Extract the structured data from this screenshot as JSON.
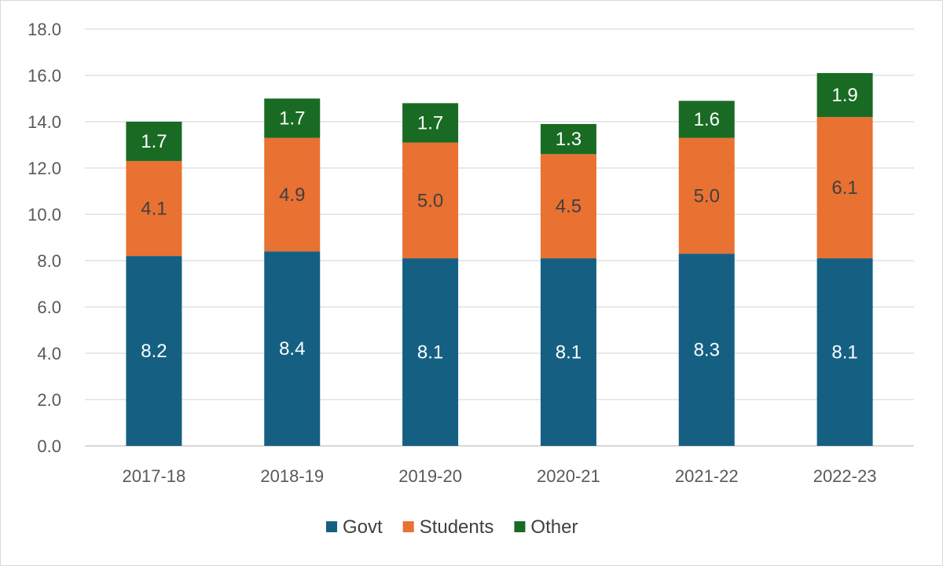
{
  "chart_data": {
    "type": "bar",
    "stacked": true,
    "title": "",
    "xlabel": "",
    "ylabel": "",
    "ylim": [
      0,
      18
    ],
    "y_ticks": [
      "0.0",
      "2.0",
      "4.0",
      "6.0",
      "8.0",
      "10.0",
      "12.0",
      "14.0",
      "16.0",
      "18.0"
    ],
    "grid": true,
    "legend_position": "bottom",
    "categories": [
      "2017-18",
      "2018-19",
      "2019-20",
      "2020-21",
      "2021-22",
      "2022-23"
    ],
    "series": [
      {
        "name": "Govt",
        "color": "#156082",
        "label_color": "#ffffff",
        "values": [
          8.2,
          8.4,
          8.1,
          8.1,
          8.3,
          8.1
        ],
        "labels": [
          "8.2",
          "8.4",
          "8.1",
          "8.1",
          "8.3",
          "8.1"
        ]
      },
      {
        "name": "Students",
        "color": "#e97132",
        "label_color": "#404040",
        "values": [
          4.1,
          4.9,
          5.0,
          4.5,
          5.0,
          6.1
        ],
        "labels": [
          "4.1",
          "4.9",
          "5.0",
          "4.5",
          "5.0",
          "6.1"
        ]
      },
      {
        "name": "Other",
        "color": "#196b24",
        "label_color": "#ffffff",
        "values": [
          1.7,
          1.7,
          1.7,
          1.3,
          1.6,
          1.9
        ],
        "labels": [
          "1.7",
          "1.7",
          "1.7",
          "1.3",
          "1.6",
          "1.9"
        ]
      }
    ]
  }
}
